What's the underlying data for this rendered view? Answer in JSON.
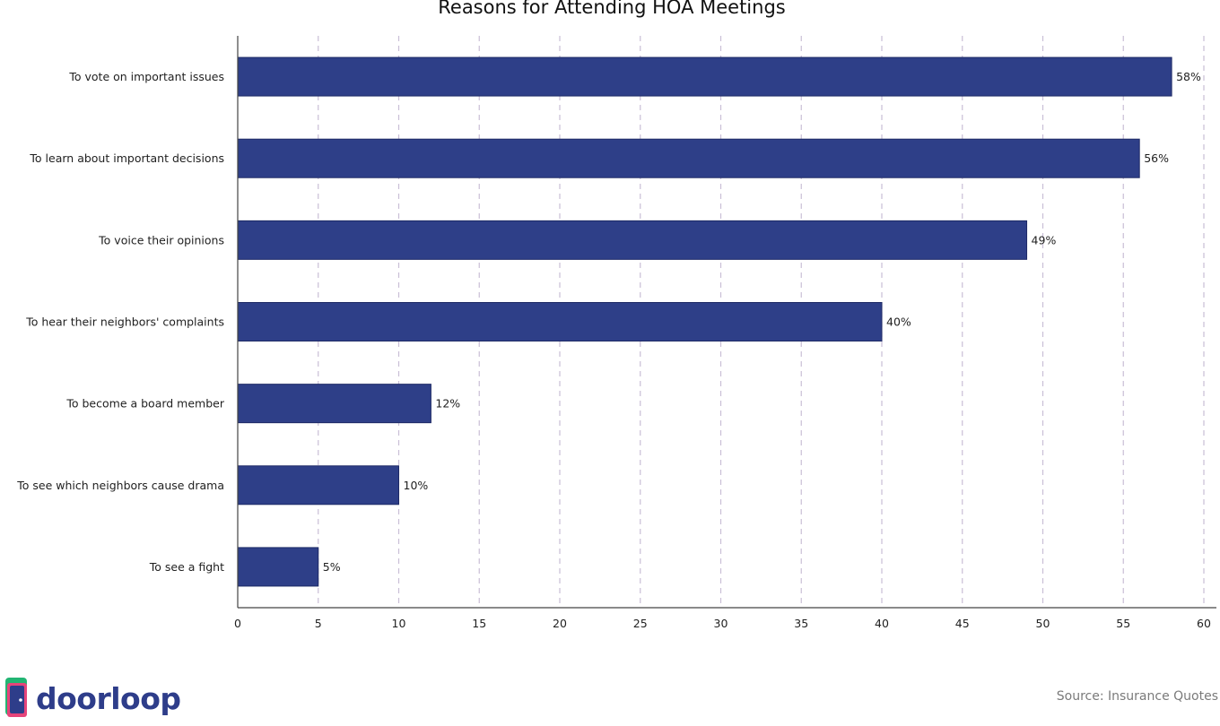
{
  "chart_data": {
    "type": "bar",
    "orientation": "horizontal",
    "title": "Reasons for Attending HOA Meetings",
    "categories": [
      "To vote on important issues",
      "To learn about important decisions",
      "To voice their opinions",
      "To hear their neighbors' complaints",
      "To become a board member",
      "To see which neighbors cause drama",
      "To see a fight"
    ],
    "values": [
      58,
      56,
      49,
      40,
      12,
      10,
      5
    ],
    "data_labels": [
      "58%",
      "56%",
      "49%",
      "40%",
      "12%",
      "10%",
      "5%"
    ],
    "xlim": [
      0,
      60
    ],
    "xticks": [
      0,
      5,
      10,
      15,
      20,
      25,
      30,
      35,
      40,
      45,
      50,
      55,
      60
    ],
    "xtick_labels": [
      "0",
      "5",
      "10",
      "15",
      "20",
      "25",
      "30",
      "35",
      "40",
      "45",
      "50",
      "55",
      "60"
    ],
    "xlabel": "",
    "ylabel": "",
    "grid": "vertical dashed",
    "legend": "none",
    "colors": {
      "bar": "#2e3f88",
      "bar_edge": "#1e2a66",
      "grid": "#c9bfd6",
      "axis": "#444444"
    }
  },
  "logo": {
    "text": "doorloop",
    "icon": "door-icon"
  },
  "source": "Source: Insurance Quotes"
}
